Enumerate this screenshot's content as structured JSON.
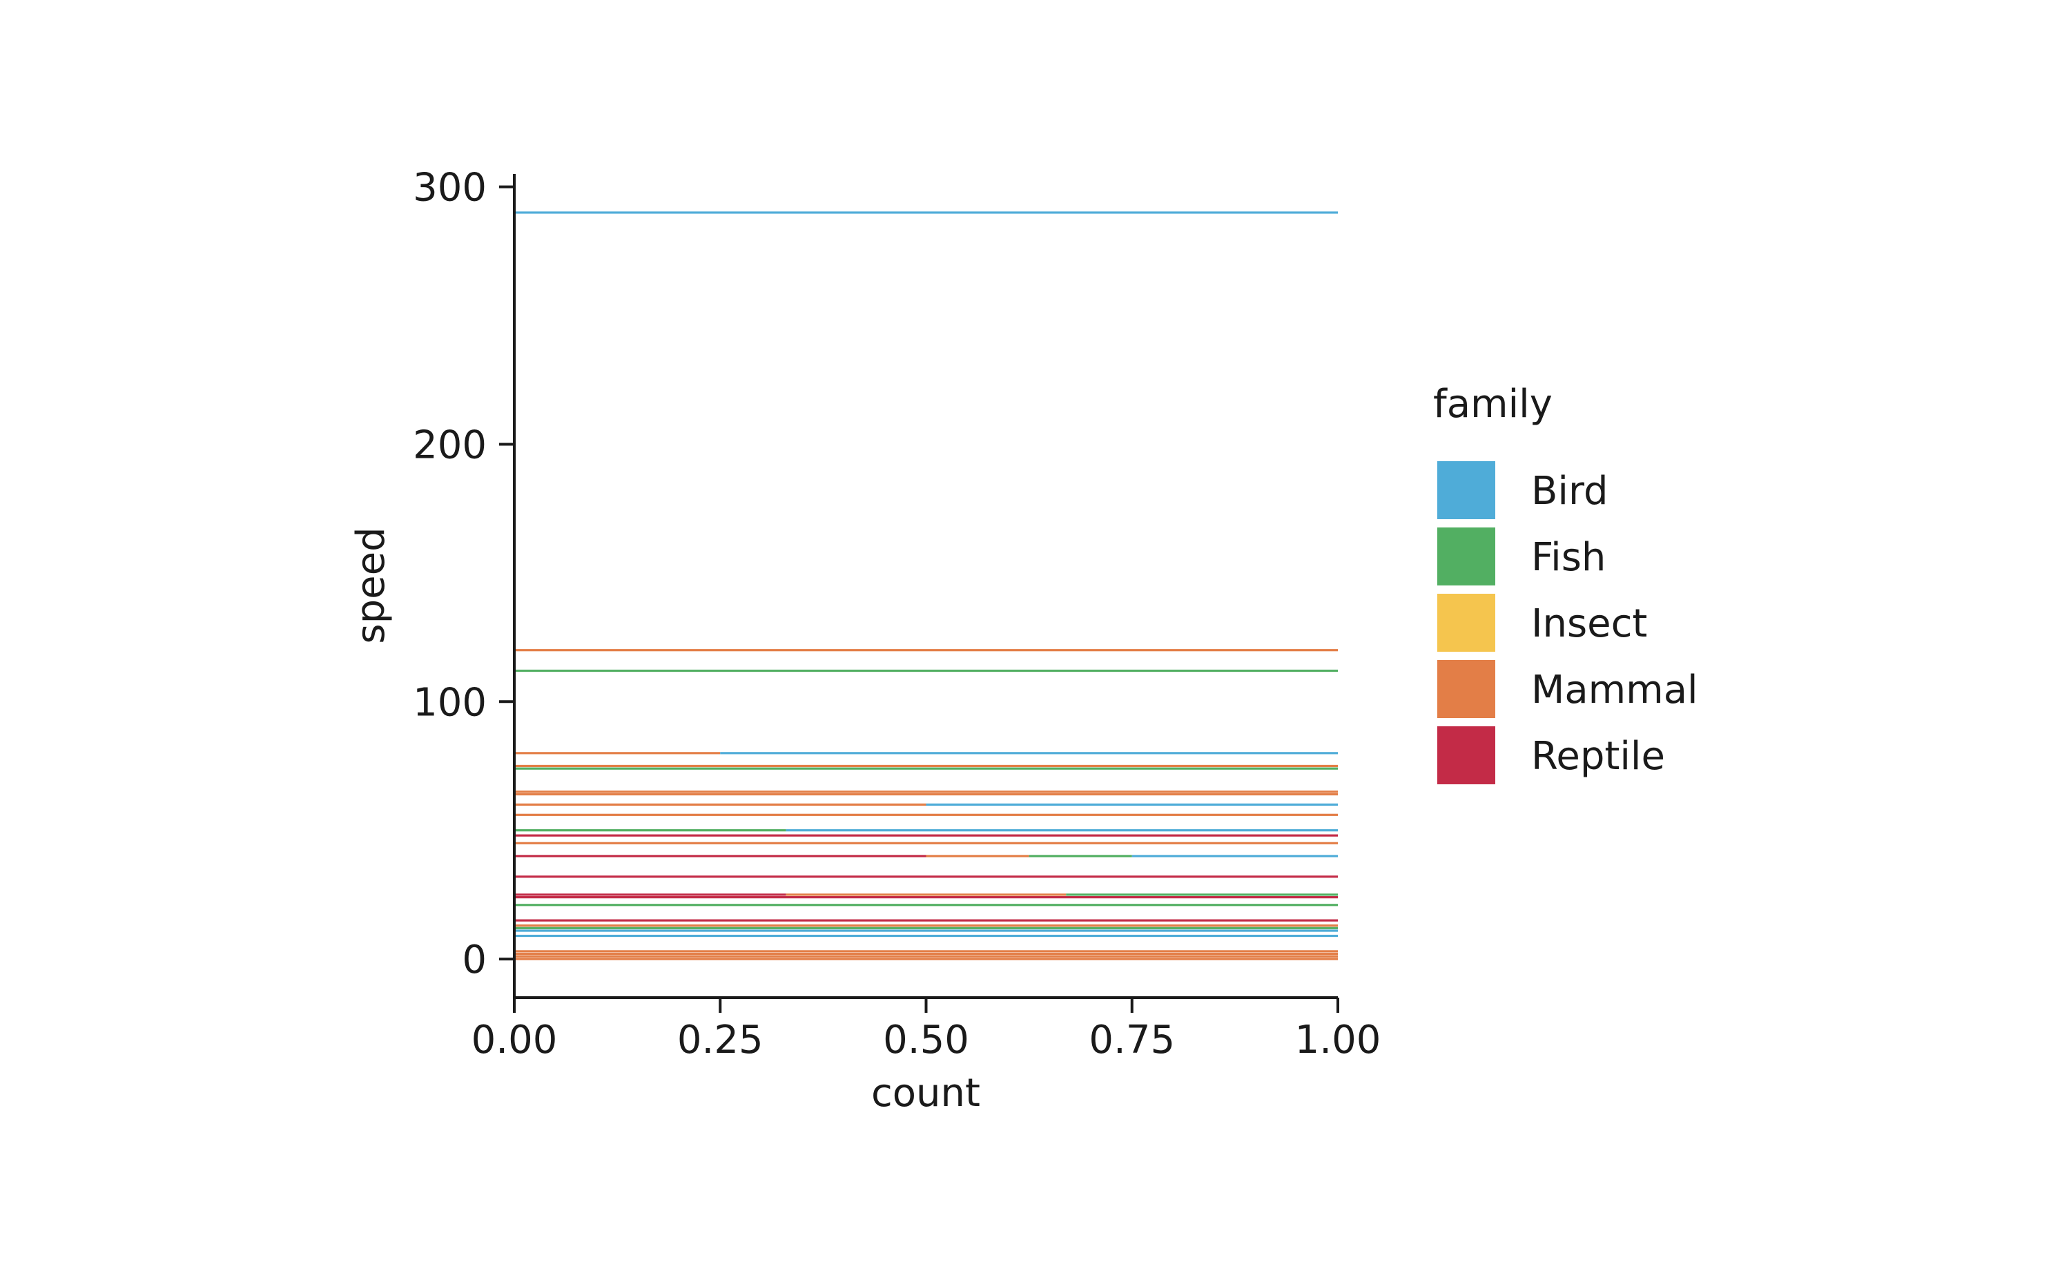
{
  "chart_data": {
    "type": "bar",
    "orientation": "horizontal",
    "position": "fill",
    "xlabel": "count",
    "ylabel": "speed",
    "xlim": [
      0,
      1
    ],
    "ylim": [
      -15,
      305
    ],
    "xticks": [
      "0.00",
      "0.25",
      "0.50",
      "0.75",
      "1.00"
    ],
    "yticks": [
      "0",
      "100",
      "200",
      "300"
    ],
    "legend": {
      "title": "family",
      "placement": "right",
      "entries": [
        {
          "name": "Bird",
          "color": "#4FACD8"
        },
        {
          "name": "Fish",
          "color": "#52AF62"
        },
        {
          "name": "Insect",
          "color": "#F5C54E"
        },
        {
          "name": "Mammal",
          "color": "#E37E47"
        },
        {
          "name": "Reptile",
          "color": "#C32B47"
        }
      ]
    },
    "bars": [
      {
        "y": 290,
        "segments": [
          {
            "family": "Bird",
            "share": 1
          }
        ]
      },
      {
        "y": 120,
        "segments": [
          {
            "family": "Mammal",
            "share": 1
          }
        ]
      },
      {
        "y": 112,
        "segments": [
          {
            "family": "Fish",
            "share": 1
          }
        ]
      },
      {
        "y": 80,
        "segments": [
          {
            "family": "Mammal",
            "share": 0.25
          },
          {
            "family": "Bird",
            "share": 0.75
          }
        ]
      },
      {
        "y": 75,
        "segments": [
          {
            "family": "Mammal",
            "share": 1
          }
        ]
      },
      {
        "y": 74,
        "segments": [
          {
            "family": "Fish",
            "share": 1
          }
        ]
      },
      {
        "y": 65,
        "segments": [
          {
            "family": "Mammal",
            "share": 1
          }
        ]
      },
      {
        "y": 64,
        "segments": [
          {
            "family": "Mammal",
            "share": 1
          }
        ]
      },
      {
        "y": 60,
        "segments": [
          {
            "family": "Mammal",
            "share": 0.5
          },
          {
            "family": "Bird",
            "share": 0.5
          }
        ]
      },
      {
        "y": 56,
        "segments": [
          {
            "family": "Mammal",
            "share": 1
          }
        ]
      },
      {
        "y": 50,
        "segments": [
          {
            "family": "Fish",
            "share": 0.33
          },
          {
            "family": "Bird",
            "share": 0.67
          }
        ]
      },
      {
        "y": 48,
        "segments": [
          {
            "family": "Reptile",
            "share": 1
          }
        ]
      },
      {
        "y": 45,
        "segments": [
          {
            "family": "Mammal",
            "share": 1
          }
        ]
      },
      {
        "y": 40,
        "segments": [
          {
            "family": "Reptile",
            "share": 0.5
          },
          {
            "family": "Mammal",
            "share": 0.125
          },
          {
            "family": "Fish",
            "share": 0.125
          },
          {
            "family": "Bird",
            "share": 0.25
          }
        ]
      },
      {
        "y": 32,
        "segments": [
          {
            "family": "Reptile",
            "share": 1
          }
        ]
      },
      {
        "y": 25,
        "segments": [
          {
            "family": "Reptile",
            "share": 0.33
          },
          {
            "family": "Mammal",
            "share": 0.34
          },
          {
            "family": "Fish",
            "share": 0.33
          }
        ]
      },
      {
        "y": 24,
        "segments": [
          {
            "family": "Reptile",
            "share": 1
          }
        ]
      },
      {
        "y": 21,
        "segments": [
          {
            "family": "Fish",
            "share": 1
          }
        ]
      },
      {
        "y": 15,
        "segments": [
          {
            "family": "Reptile",
            "share": 1
          }
        ]
      },
      {
        "y": 13,
        "segments": [
          {
            "family": "Mammal",
            "share": 1
          }
        ]
      },
      {
        "y": 12,
        "segments": [
          {
            "family": "Fish",
            "share": 1
          }
        ]
      },
      {
        "y": 11,
        "segments": [
          {
            "family": "Bird",
            "share": 1
          }
        ]
      },
      {
        "y": 9,
        "segments": [
          {
            "family": "Bird",
            "share": 1
          }
        ]
      },
      {
        "y": 3,
        "segments": [
          {
            "family": "Mammal",
            "share": 1
          }
        ]
      },
      {
        "y": 2,
        "segments": [
          {
            "family": "Mammal",
            "share": 1
          }
        ]
      },
      {
        "y": 1,
        "segments": [
          {
            "family": "Mammal",
            "share": 1
          }
        ]
      },
      {
        "y": 0,
        "segments": [
          {
            "family": "Mammal",
            "share": 1
          }
        ]
      }
    ]
  }
}
